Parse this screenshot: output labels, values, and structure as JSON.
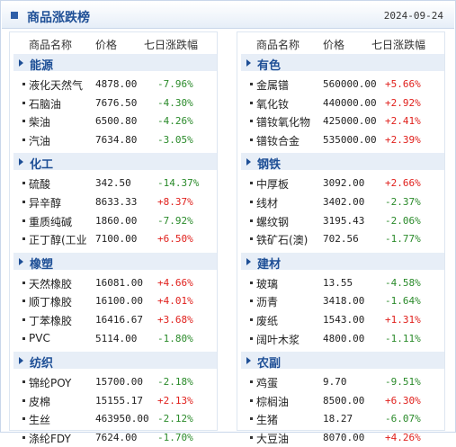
{
  "header": {
    "title": "商品涨跌榜",
    "date": "2024-09-24"
  },
  "columns": {
    "name": "商品名称",
    "price": "价格",
    "change": "七日涨跌幅"
  },
  "left": [
    {
      "category": "能源",
      "items": [
        {
          "name": "液化天然气",
          "price": "4878.00",
          "change": "-7.96%",
          "dir": "down"
        },
        {
          "name": "石脑油",
          "price": "7676.50",
          "change": "-4.30%",
          "dir": "down"
        },
        {
          "name": "柴油",
          "price": "6500.80",
          "change": "-4.26%",
          "dir": "down"
        },
        {
          "name": "汽油",
          "price": "7634.80",
          "change": "-3.05%",
          "dir": "down"
        }
      ]
    },
    {
      "category": "化工",
      "items": [
        {
          "name": "硫酸",
          "price": "342.50",
          "change": "-14.37%",
          "dir": "down"
        },
        {
          "name": "异辛醇",
          "price": "8633.33",
          "change": "+8.37%",
          "dir": "up"
        },
        {
          "name": "重质纯碱",
          "price": "1860.00",
          "change": "-7.92%",
          "dir": "down"
        },
        {
          "name": "正丁醇(工业",
          "price": "7100.00",
          "change": "+6.50%",
          "dir": "up"
        }
      ]
    },
    {
      "category": "橡塑",
      "items": [
        {
          "name": "天然橡胶",
          "price": "16081.00",
          "change": "+4.66%",
          "dir": "up"
        },
        {
          "name": "顺丁橡胶",
          "price": "16100.00",
          "change": "+4.01%",
          "dir": "up"
        },
        {
          "name": "丁苯橡胶",
          "price": "16416.67",
          "change": "+3.68%",
          "dir": "up"
        },
        {
          "name": "PVC",
          "price": "5114.00",
          "change": "-1.80%",
          "dir": "down"
        }
      ]
    },
    {
      "category": "纺织",
      "items": [
        {
          "name": "锦纶POY",
          "price": "15700.00",
          "change": "-2.18%",
          "dir": "down"
        },
        {
          "name": "皮棉",
          "price": "15155.17",
          "change": "+2.13%",
          "dir": "up"
        },
        {
          "name": "生丝",
          "price": "463950.00",
          "change": "-2.12%",
          "dir": "down"
        },
        {
          "name": "涤纶FDY",
          "price": "7624.00",
          "change": "-1.70%",
          "dir": "down"
        }
      ]
    }
  ],
  "right": [
    {
      "category": "有色",
      "items": [
        {
          "name": "金属镨",
          "price": "560000.00",
          "change": "+5.66%",
          "dir": "up"
        },
        {
          "name": "氧化钕",
          "price": "440000.00",
          "change": "+2.92%",
          "dir": "up"
        },
        {
          "name": "镨钕氧化物",
          "price": "425000.00",
          "change": "+2.41%",
          "dir": "up"
        },
        {
          "name": "镨钕合金",
          "price": "535000.00",
          "change": "+2.39%",
          "dir": "up"
        }
      ]
    },
    {
      "category": "钢铁",
      "items": [
        {
          "name": "中厚板",
          "price": "3092.00",
          "change": "+2.66%",
          "dir": "up"
        },
        {
          "name": "线材",
          "price": "3402.00",
          "change": "-2.37%",
          "dir": "down"
        },
        {
          "name": "螺纹钢",
          "price": "3195.43",
          "change": "-2.06%",
          "dir": "down"
        },
        {
          "name": "铁矿石(澳)",
          "price": "702.56",
          "change": "-1.77%",
          "dir": "down"
        }
      ]
    },
    {
      "category": "建材",
      "items": [
        {
          "name": "玻璃",
          "price": "13.55",
          "change": "-4.58%",
          "dir": "down"
        },
        {
          "name": "沥青",
          "price": "3418.00",
          "change": "-1.64%",
          "dir": "down"
        },
        {
          "name": "废纸",
          "price": "1543.00",
          "change": "+1.31%",
          "dir": "up"
        },
        {
          "name": "阔叶木浆",
          "price": "4800.00",
          "change": "-1.11%",
          "dir": "down"
        }
      ]
    },
    {
      "category": "农副",
      "items": [
        {
          "name": "鸡蛋",
          "price": "9.70",
          "change": "-9.51%",
          "dir": "down"
        },
        {
          "name": "棕榈油",
          "price": "8500.00",
          "change": "+6.30%",
          "dir": "up"
        },
        {
          "name": "生猪",
          "price": "18.27",
          "change": "-6.07%",
          "dir": "down"
        },
        {
          "name": "大豆油",
          "price": "8070.00",
          "change": "+4.26%",
          "dir": "up"
        }
      ]
    }
  ],
  "colors": {
    "up": "#e0201c",
    "down": "#2a8a2a",
    "accent": "#1e4f96"
  }
}
